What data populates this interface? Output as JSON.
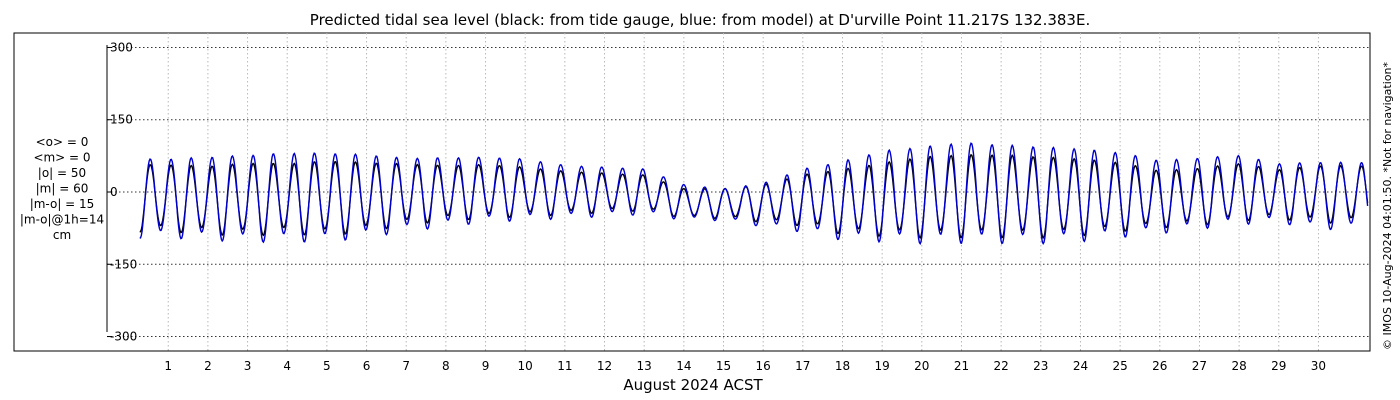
{
  "chart_data": {
    "type": "line",
    "title": "Predicted tidal sea level (black: from tide gauge, blue: from model) at D'urville Point 11.217S 132.383E.",
    "xlabel": "August 2024 ACST",
    "ylabel": "",
    "ylim": [
      -330,
      330
    ],
    "xlim_days": [
      0.2,
      31.3
    ],
    "yticks": [
      "300",
      "150",
      "0",
      "-150",
      "-300"
    ],
    "ytick_values": [
      300,
      150,
      0,
      -150,
      -300
    ],
    "xticks": [
      "1",
      "2",
      "3",
      "4",
      "5",
      "6",
      "7",
      "8",
      "9",
      "10",
      "11",
      "12",
      "13",
      "14",
      "15",
      "16",
      "17",
      "18",
      "19",
      "20",
      "21",
      "22",
      "23",
      "24",
      "25",
      "26",
      "27",
      "28",
      "29",
      "30"
    ],
    "grid": true,
    "stats": [
      "<o> = 0",
      "<m> = 0",
      "|o| = 50",
      "|m| = 60",
      "|m-o| = 15",
      "|m-o|@1h=14",
      "cm"
    ],
    "credit": "© IMOS 10-Aug-2024 04:01:50. *Not for navigation*",
    "series": [
      {
        "name": "tide gauge",
        "color": "#000000",
        "daily_range": [
          {
            "day": 1,
            "max": 75,
            "min": -95
          },
          {
            "day": 2,
            "max": 72,
            "min": -100
          },
          {
            "day": 3,
            "max": 80,
            "min": -105
          },
          {
            "day": 4,
            "max": 78,
            "min": -100
          },
          {
            "day": 5,
            "max": 85,
            "min": -105
          },
          {
            "day": 6,
            "max": 80,
            "min": -95
          },
          {
            "day": 7,
            "max": 75,
            "min": -80
          },
          {
            "day": 8,
            "max": 70,
            "min": -70
          },
          {
            "day": 9,
            "max": 72,
            "min": -65
          },
          {
            "day": 10,
            "max": 65,
            "min": -60
          },
          {
            "day": 11,
            "max": 55,
            "min": -55
          },
          {
            "day": 12,
            "max": 50,
            "min": -50
          },
          {
            "day": 13,
            "max": 45,
            "min": -45
          },
          {
            "day": 14,
            "max": 15,
            "min": -60
          },
          {
            "day": 15,
            "max": 15,
            "min": -60
          },
          {
            "day": 16,
            "max": 25,
            "min": -70
          },
          {
            "day": 17,
            "max": 50,
            "min": -80
          },
          {
            "day": 18,
            "max": 65,
            "min": -100
          },
          {
            "day": 19,
            "max": 80,
            "min": -105
          },
          {
            "day": 20,
            "max": 95,
            "min": -110
          },
          {
            "day": 21,
            "max": 100,
            "min": -110
          },
          {
            "day": 22,
            "max": 100,
            "min": -110
          },
          {
            "day": 23,
            "max": 95,
            "min": -110
          },
          {
            "day": 24,
            "max": 90,
            "min": -105
          },
          {
            "day": 25,
            "max": 80,
            "min": -95
          },
          {
            "day": 26,
            "max": 60,
            "min": -85
          },
          {
            "day": 27,
            "max": 65,
            "min": -80
          },
          {
            "day": 28,
            "max": 75,
            "min": -70
          },
          {
            "day": 29,
            "max": 60,
            "min": -65
          },
          {
            "day": 30,
            "max": 70,
            "min": -75
          }
        ]
      },
      {
        "name": "model",
        "color": "#0000cc",
        "daily_range": [
          {
            "day": 1,
            "max": 90,
            "min": -110
          },
          {
            "day": 2,
            "max": 95,
            "min": -115
          },
          {
            "day": 3,
            "max": 100,
            "min": -120
          },
          {
            "day": 4,
            "max": 105,
            "min": -120
          },
          {
            "day": 5,
            "max": 105,
            "min": -120
          },
          {
            "day": 6,
            "max": 100,
            "min": -110
          },
          {
            "day": 7,
            "max": 90,
            "min": -95
          },
          {
            "day": 8,
            "max": 90,
            "min": -85
          },
          {
            "day": 9,
            "max": 90,
            "min": -75
          },
          {
            "day": 10,
            "max": 85,
            "min": -70
          },
          {
            "day": 11,
            "max": 70,
            "min": -65
          },
          {
            "day": 12,
            "max": 65,
            "min": -60
          },
          {
            "day": 13,
            "max": 60,
            "min": -55
          },
          {
            "day": 14,
            "max": 25,
            "min": -65
          },
          {
            "day": 15,
            "max": 15,
            "min": -65
          },
          {
            "day": 16,
            "max": 30,
            "min": -80
          },
          {
            "day": 17,
            "max": 65,
            "min": -95
          },
          {
            "day": 18,
            "max": 85,
            "min": -115
          },
          {
            "day": 19,
            "max": 110,
            "min": -120
          },
          {
            "day": 20,
            "max": 120,
            "min": -125
          },
          {
            "day": 21,
            "max": 130,
            "min": -125
          },
          {
            "day": 22,
            "max": 125,
            "min": -125
          },
          {
            "day": 23,
            "max": 120,
            "min": -125
          },
          {
            "day": 24,
            "max": 115,
            "min": -120
          },
          {
            "day": 25,
            "max": 105,
            "min": -110
          },
          {
            "day": 26,
            "max": 85,
            "min": -100
          },
          {
            "day": 27,
            "max": 90,
            "min": -90
          },
          {
            "day": 28,
            "max": 95,
            "min": -80
          },
          {
            "day": 29,
            "max": 75,
            "min": -75
          },
          {
            "day": 30,
            "max": 80,
            "min": -90
          }
        ]
      }
    ]
  }
}
